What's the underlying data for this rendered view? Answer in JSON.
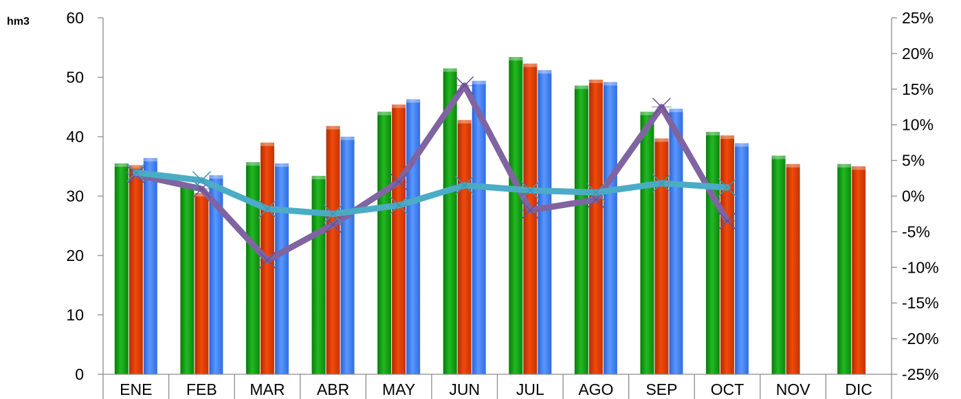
{
  "chart_data": {
    "type": "bar",
    "title": "",
    "ylabel": "hm3",
    "xlabel": "",
    "categories": [
      "ENE",
      "FEB",
      "MAR",
      "ABR",
      "MAY",
      "JUN",
      "JUL",
      "AGO",
      "SEP",
      "OCT",
      "NOV",
      "DIC"
    ],
    "ylim": [
      0,
      60
    ],
    "yticks": [
      "0",
      "10",
      "20",
      "30",
      "40",
      "50",
      "60"
    ],
    "y2lim": [
      -25,
      25
    ],
    "y2ticks": [
      "-25%",
      "-20%",
      "-15%",
      "-10%",
      "-5%",
      "0%",
      "5%",
      "10%",
      "15%",
      "20%",
      "25%"
    ],
    "grid": false,
    "legend": "none",
    "series": [
      {
        "kind": "bar",
        "axis": "left",
        "color": "#12a012",
        "values": [
          35.5,
          32.0,
          35.7,
          33.4,
          44.2,
          51.5,
          53.4,
          48.6,
          44.2,
          40.8,
          36.8,
          35.4
        ]
      },
      {
        "kind": "bar",
        "axis": "left",
        "color": "#e03c00",
        "values": [
          35.2,
          30.5,
          39.0,
          41.8,
          45.4,
          42.8,
          52.3,
          49.6,
          39.7,
          40.2,
          35.4,
          35.0
        ]
      },
      {
        "kind": "bar",
        "axis": "left",
        "color": "#3d7ef7",
        "values": [
          36.4,
          33.5,
          35.5,
          40.0,
          46.3,
          49.4,
          51.2,
          49.2,
          44.7,
          38.9,
          null,
          null
        ]
      },
      {
        "kind": "line",
        "axis": "right",
        "color": "#8064a2",
        "marker": "x",
        "values": [
          3.0,
          1.0,
          -9.0,
          -4.0,
          2.0,
          15.5,
          -2.0,
          -0.5,
          12.5,
          -3.5,
          null,
          null
        ]
      },
      {
        "kind": "line",
        "axis": "right",
        "color": "#4bacc6",
        "marker": "x",
        "values": [
          3.3,
          2.2,
          -1.8,
          -2.5,
          -1.3,
          1.5,
          0.8,
          0.5,
          1.8,
          1.2,
          null,
          null
        ]
      }
    ]
  }
}
